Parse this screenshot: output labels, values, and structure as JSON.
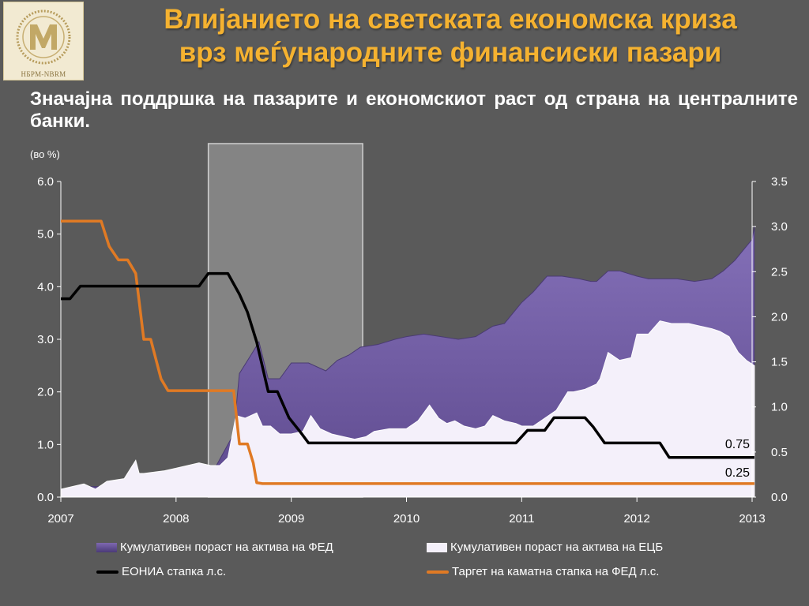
{
  "header": {
    "logo_label": "НБРМ-NBRM",
    "title_line1": "Влијанието на светската економска криза",
    "title_line2": "врз меѓународните финансиски пазари",
    "subtitle": "Значајна поддршка на пазарите и економскиот раст од страна на централните банки."
  },
  "chart_data": {
    "type": "area",
    "unit_label": "(во %)",
    "x_ticks": [
      "2007",
      "2008",
      "2009",
      "2010",
      "2011",
      "2012",
      "2013"
    ],
    "y_left_ticks": [
      "0.0",
      "1.0",
      "2.0",
      "3.0",
      "4.0",
      "5.0",
      "6.0"
    ],
    "y_right_ticks": [
      "0.0",
      "0.5",
      "1.0",
      "1.5",
      "2.0",
      "2.5",
      "3.0",
      "3.5"
    ],
    "ylim_left": [
      0,
      6
    ],
    "ylim_right": [
      0,
      3.5
    ],
    "xlim": [
      2007.0,
      2013.0
    ],
    "shaded_region": [
      2008.28,
      2009.62
    ],
    "colors": {
      "fed_assets": "#5e4a8e",
      "ecb_assets": "#f4f0fa",
      "eonia": "#000000",
      "fed_target": "#e07a24",
      "shade": "#8c8c8c"
    },
    "series": [
      {
        "name": "Кумулативен пораст на актива на ФЕД",
        "axis": "left",
        "x": [
          2007.0,
          2007.17,
          2007.33,
          2007.5,
          2007.67,
          2007.83,
          2008.0,
          2008.17,
          2008.35,
          2008.5,
          2008.55,
          2008.65,
          2008.72,
          2008.8,
          2008.9,
          2009.0,
          2009.15,
          2009.3,
          2009.4,
          2009.5,
          2009.6,
          2009.75,
          2009.9,
          2010.0,
          2010.15,
          2010.3,
          2010.45,
          2010.6,
          2010.75,
          2010.85,
          2011.0,
          2011.1,
          2011.22,
          2011.35,
          2011.5,
          2011.6,
          2011.65,
          2011.75,
          2011.85,
          2012.0,
          2012.1,
          2012.2,
          2012.35,
          2012.5,
          2012.65,
          2012.75,
          2012.85,
          2013.0,
          2013.02
        ],
        "values": [
          0.15,
          0.2,
          0.2,
          0.3,
          0.4,
          0.45,
          0.5,
          0.55,
          0.6,
          1.2,
          2.35,
          2.7,
          2.95,
          2.25,
          2.25,
          2.55,
          2.55,
          2.4,
          2.6,
          2.7,
          2.85,
          2.9,
          3.0,
          3.05,
          3.1,
          3.05,
          3.0,
          3.05,
          3.25,
          3.3,
          3.7,
          3.9,
          4.2,
          4.2,
          4.15,
          4.1,
          4.1,
          4.3,
          4.3,
          4.2,
          4.15,
          4.15,
          4.15,
          4.1,
          4.15,
          4.3,
          4.5,
          4.9,
          5.15
        ]
      },
      {
        "name": "Кумулативен пораст на актива на ЕЦБ",
        "axis": "left",
        "x": [
          2007.0,
          2007.1,
          2007.2,
          2007.3,
          2007.4,
          2007.55,
          2007.65,
          2007.68,
          2007.72,
          2007.9,
          2008.0,
          2008.1,
          2008.2,
          2008.3,
          2008.38,
          2008.45,
          2008.52,
          2008.6,
          2008.7,
          2008.75,
          2008.82,
          2008.9,
          2009.0,
          2009.1,
          2009.17,
          2009.25,
          2009.35,
          2009.45,
          2009.55,
          2009.65,
          2009.72,
          2009.85,
          2010.0,
          2010.1,
          2010.2,
          2010.28,
          2010.35,
          2010.42,
          2010.5,
          2010.6,
          2010.68,
          2010.75,
          2010.85,
          2010.95,
          2011.0,
          2011.1,
          2011.2,
          2011.3,
          2011.4,
          2011.45,
          2011.55,
          2011.65,
          2011.68,
          2011.75,
          2011.85,
          2011.95,
          2012.0,
          2012.1,
          2012.2,
          2012.3,
          2012.45,
          2012.55,
          2012.65,
          2012.72,
          2012.8,
          2012.88,
          2012.95,
          2013.02
        ],
        "values": [
          0.15,
          0.2,
          0.25,
          0.15,
          0.3,
          0.35,
          0.7,
          0.45,
          0.45,
          0.5,
          0.55,
          0.6,
          0.65,
          0.6,
          0.6,
          0.75,
          1.55,
          1.5,
          1.6,
          1.35,
          1.35,
          1.2,
          1.2,
          1.25,
          1.55,
          1.3,
          1.2,
          1.15,
          1.1,
          1.15,
          1.25,
          1.3,
          1.3,
          1.45,
          1.75,
          1.5,
          1.4,
          1.45,
          1.35,
          1.3,
          1.35,
          1.55,
          1.45,
          1.4,
          1.35,
          1.35,
          1.5,
          1.65,
          2.0,
          2.0,
          2.05,
          2.15,
          2.25,
          2.75,
          2.6,
          2.65,
          3.1,
          3.1,
          3.35,
          3.3,
          3.3,
          3.25,
          3.2,
          3.15,
          3.05,
          2.75,
          2.6,
          2.5
        ]
      },
      {
        "name": "ЕОНИА стапка л.с.",
        "axis": "right",
        "x": [
          2007.0,
          2007.08,
          2007.17,
          2007.4,
          2007.6,
          2007.8,
          2008.0,
          2008.2,
          2008.28,
          2008.45,
          2008.55,
          2008.62,
          2008.7,
          2008.8,
          2008.88,
          2008.98,
          2009.08,
          2009.15,
          2009.3,
          2009.6,
          2010.0,
          2010.5,
          2010.95,
          2011.05,
          2011.2,
          2011.28,
          2011.38,
          2011.55,
          2011.62,
          2011.72,
          2011.85,
          2012.0,
          2012.2,
          2012.28,
          2012.5,
          2012.8,
          2013.02
        ],
        "values": [
          2.2,
          2.2,
          2.34,
          2.34,
          2.34,
          2.34,
          2.34,
          2.34,
          2.48,
          2.48,
          2.25,
          2.05,
          1.72,
          1.17,
          1.17,
          0.88,
          0.72,
          0.6,
          0.6,
          0.6,
          0.6,
          0.6,
          0.6,
          0.74,
          0.74,
          0.88,
          0.88,
          0.88,
          0.78,
          0.6,
          0.6,
          0.6,
          0.6,
          0.44,
          0.44,
          0.44,
          0.44
        ]
      },
      {
        "name": "Таргет на каматна стапка на ФЕД л.с.",
        "axis": "right",
        "x": [
          2007.0,
          2007.35,
          2007.42,
          2007.5,
          2007.58,
          2007.65,
          2007.72,
          2007.78,
          2007.87,
          2007.93,
          2008.0,
          2008.2,
          2008.38,
          2008.46,
          2008.5,
          2008.55,
          2008.62,
          2008.67,
          2008.7,
          2008.75,
          2008.85,
          2009.0,
          2010.0,
          2011.0,
          2012.0,
          2013.02
        ],
        "values": [
          3.06,
          3.06,
          2.78,
          2.63,
          2.63,
          2.48,
          1.75,
          1.75,
          1.31,
          1.18,
          1.18,
          1.18,
          1.18,
          1.18,
          1.18,
          0.59,
          0.59,
          0.38,
          0.16,
          0.15,
          0.15,
          0.15,
          0.15,
          0.15,
          0.15,
          0.15
        ]
      }
    ],
    "annotations": [
      "0.75",
      "0.25"
    ]
  },
  "legend": [
    {
      "key": "fed_assets",
      "label": "Кумулативен пораст на актива на ФЕД",
      "kind": "box"
    },
    {
      "key": "ecb_assets",
      "label": "Кумулативен пораст на актива на ЕЦБ",
      "kind": "box"
    },
    {
      "key": "eonia",
      "label": "ЕОНИА стапка л.с.",
      "kind": "line"
    },
    {
      "key": "fed_target",
      "label": "Таргет на каматна стапка на ФЕД л.с.",
      "kind": "line"
    }
  ]
}
